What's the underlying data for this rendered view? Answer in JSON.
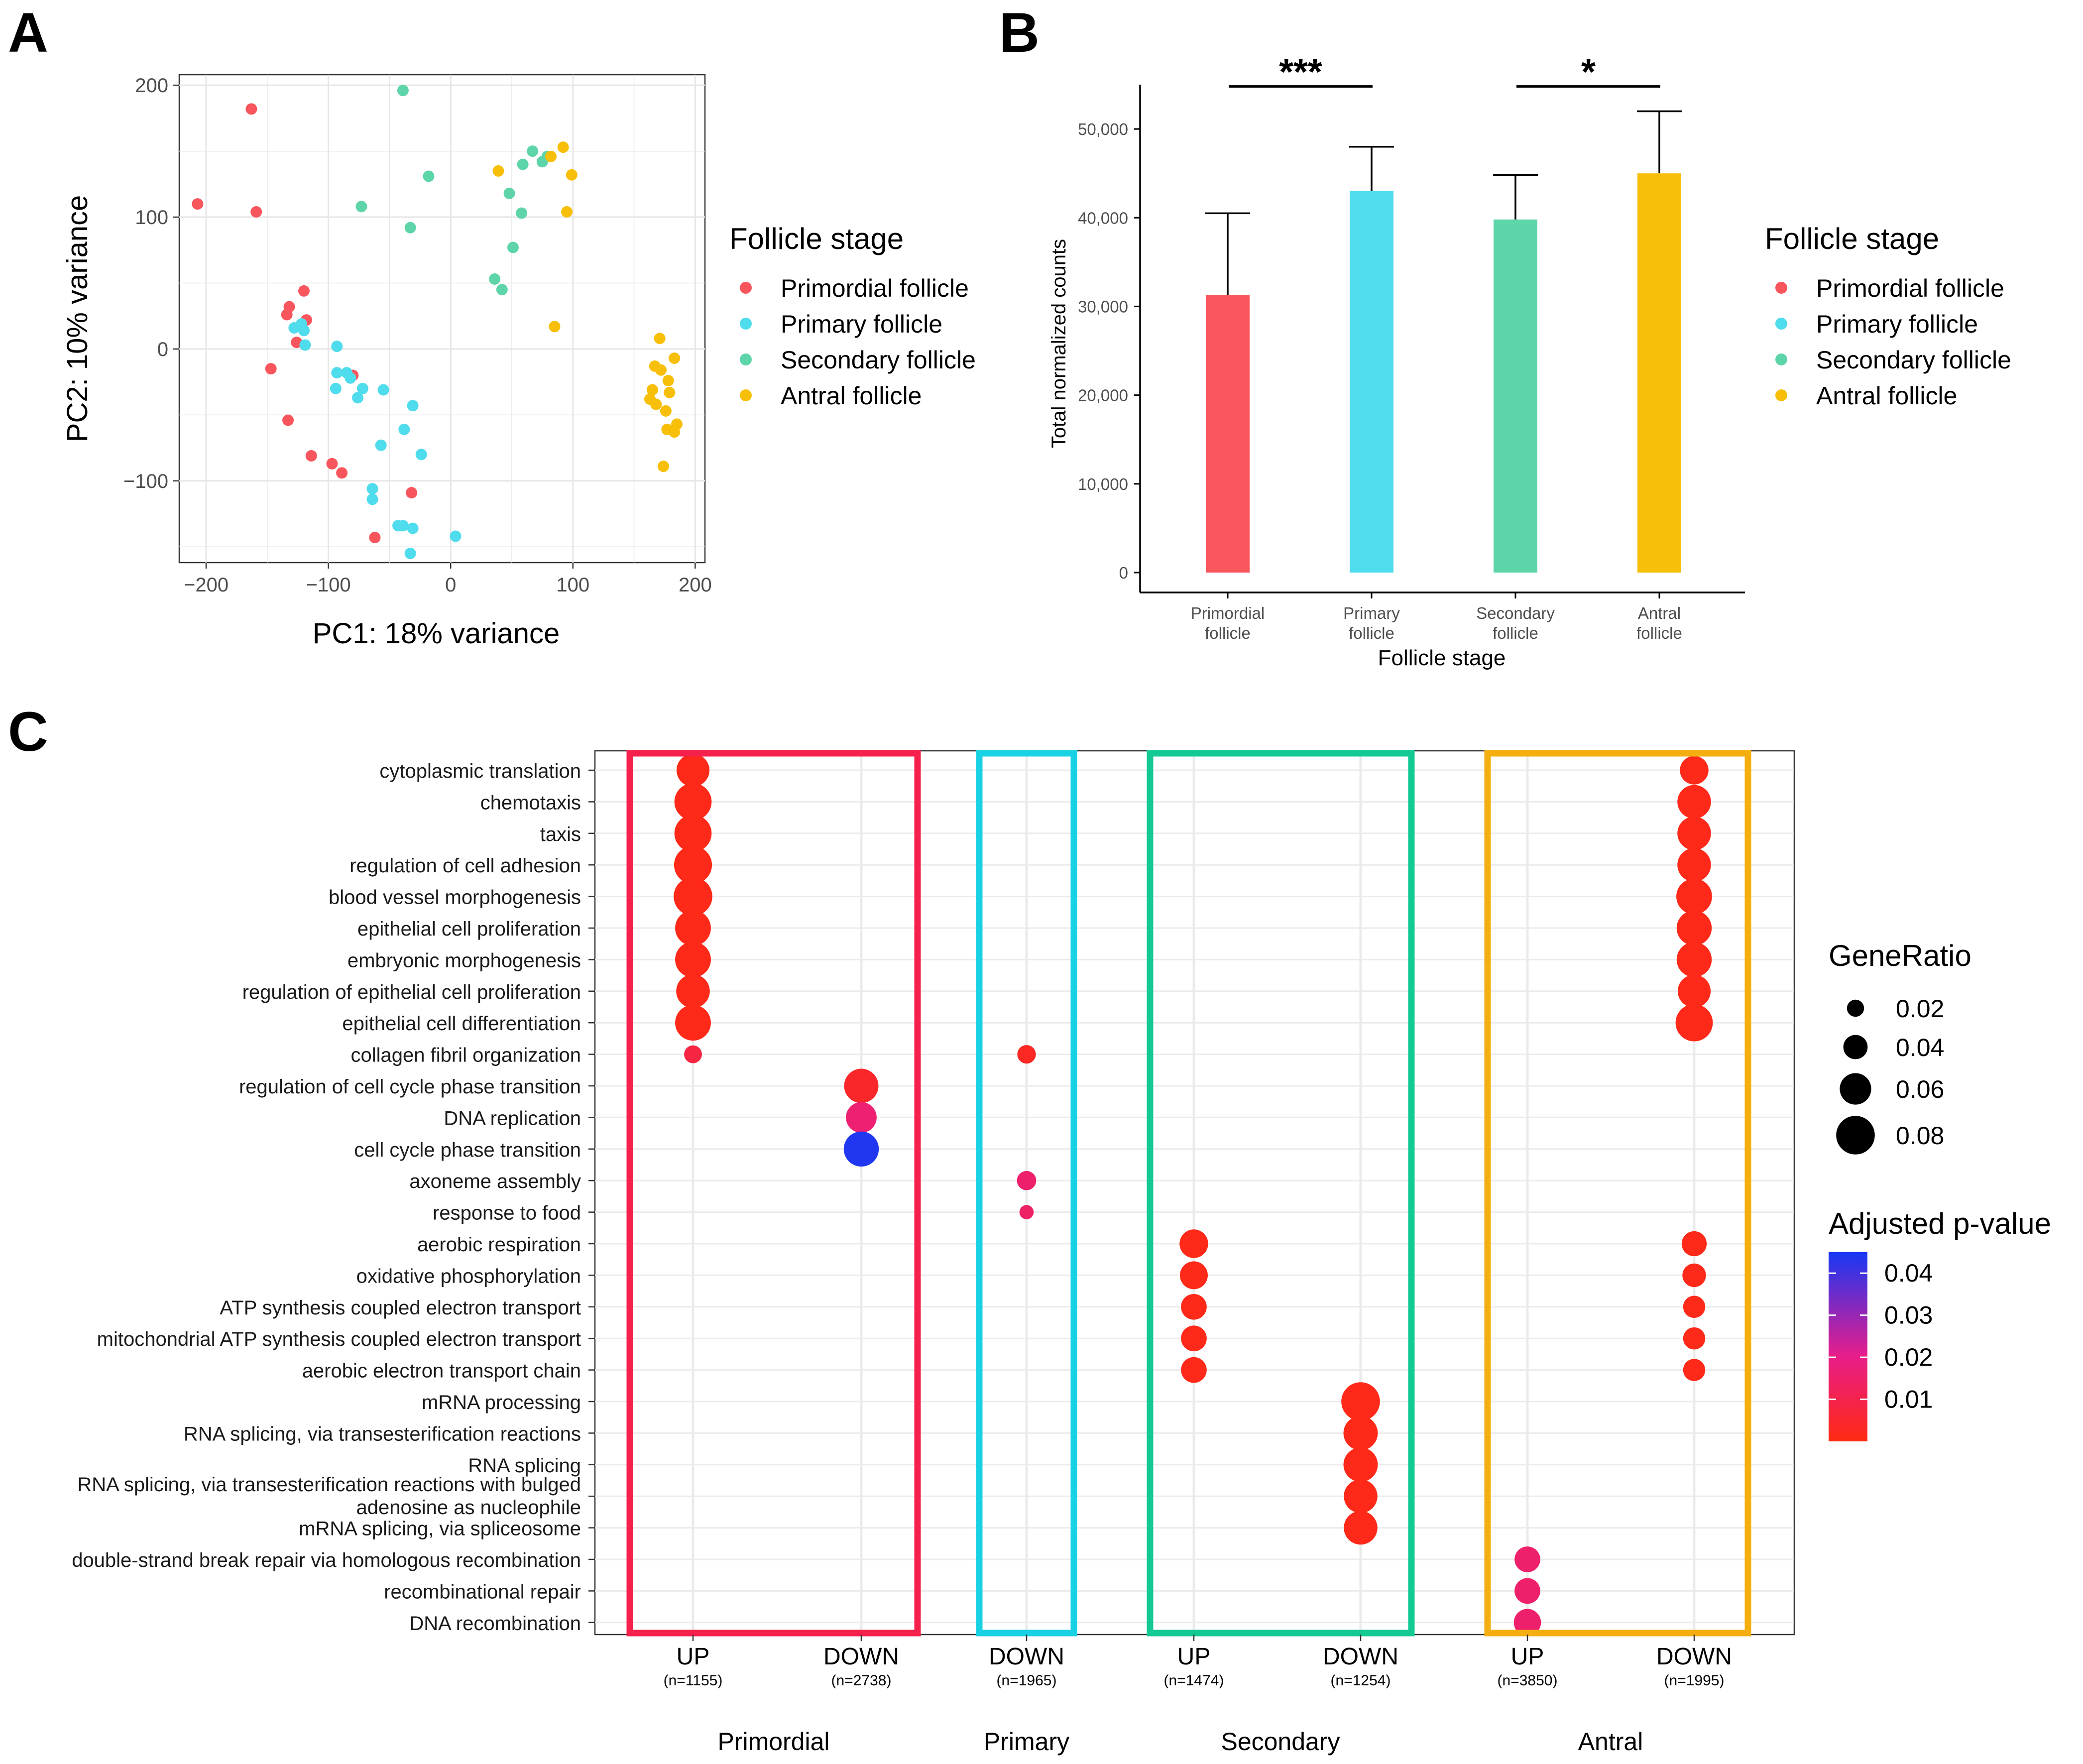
{
  "panels": {
    "A": "A",
    "B": "B",
    "C": "C"
  },
  "colors": {
    "Primordial follicle": "#f8555c",
    "Primary follicle": "#4fdcec",
    "Secondary follicle": "#5ed5a8",
    "Antral follicle": "#f7bf08",
    "box_primordial": "#f5204b",
    "box_primary": "#18d2e4",
    "box_secondary": "#13c994",
    "box_antral": "#f4ae0f"
  },
  "chart_data": [
    {
      "type": "scatter",
      "panel": "A",
      "xlabel": "PC1: 18% variance",
      "ylabel": "PC2: 10% variance",
      "xlim": [
        -222,
        208
      ],
      "ylim": [
        -162,
        208
      ],
      "xticks": [
        -200,
        -100,
        0,
        100,
        200
      ],
      "xtick_labels": [
        "−200",
        "−100",
        "0",
        "100",
        "200"
      ],
      "yticks": [
        -100,
        0,
        100,
        200
      ],
      "ytick_labels": [
        "−100",
        "0",
        "100",
        "200"
      ],
      "grid": true,
      "legend_title": "Follicle stage",
      "legend_position": "right",
      "series": [
        {
          "name": "Primordial follicle",
          "points": [
            [
              -163,
              182
            ],
            [
              -207,
              110
            ],
            [
              -159,
              104
            ],
            [
              -120,
              44
            ],
            [
              -132,
              32
            ],
            [
              -134,
              26
            ],
            [
              -118,
              22
            ],
            [
              -126,
              5
            ],
            [
              -147,
              -15
            ],
            [
              -80,
              -20
            ],
            [
              -133,
              -54
            ],
            [
              -114,
              -81
            ],
            [
              -97,
              -87
            ],
            [
              -89,
              -94
            ],
            [
              -32,
              -109
            ],
            [
              -62,
              -143
            ]
          ]
        },
        {
          "name": "Primary follicle",
          "points": [
            [
              -128,
              16
            ],
            [
              -122,
              19
            ],
            [
              -120,
              14
            ],
            [
              -119,
              3
            ],
            [
              -93,
              2
            ],
            [
              -93,
              -18
            ],
            [
              -85,
              -18
            ],
            [
              -82,
              -22
            ],
            [
              -94,
              -30
            ],
            [
              -72,
              -30
            ],
            [
              -76,
              -37
            ],
            [
              -55,
              -31
            ],
            [
              -38,
              -61
            ],
            [
              -31,
              -43
            ],
            [
              -57,
              -73
            ],
            [
              -24,
              -80
            ],
            [
              -64,
              -106
            ],
            [
              -64,
              -114
            ],
            [
              -39,
              -134
            ],
            [
              -31,
              -136
            ],
            [
              -43,
              -134
            ],
            [
              4,
              -142
            ],
            [
              -33,
              -155
            ]
          ]
        },
        {
          "name": "Secondary follicle",
          "points": [
            [
              -39,
              196
            ],
            [
              -18,
              131
            ],
            [
              -73,
              108
            ],
            [
              -33,
              92
            ],
            [
              67,
              150
            ],
            [
              79,
              146
            ],
            [
              59,
              140
            ],
            [
              75,
              142
            ],
            [
              48,
              118
            ],
            [
              58,
              103
            ],
            [
              51,
              77
            ],
            [
              36,
              53
            ],
            [
              42,
              45
            ]
          ]
        },
        {
          "name": "Antral follicle",
          "points": [
            [
              39,
              135
            ],
            [
              82,
              146
            ],
            [
              92,
              153
            ],
            [
              99,
              132
            ],
            [
              95,
              104
            ],
            [
              85,
              17
            ],
            [
              171,
              8
            ],
            [
              183,
              -7
            ],
            [
              167,
              -13
            ],
            [
              172,
              -16
            ],
            [
              178,
              -24
            ],
            [
              165,
              -31
            ],
            [
              179,
              -33
            ],
            [
              163,
              -38
            ],
            [
              168,
              -42
            ],
            [
              176,
              -47
            ],
            [
              185,
              -57
            ],
            [
              177,
              -61
            ],
            [
              183,
              -63
            ],
            [
              174,
              -89
            ]
          ]
        }
      ]
    },
    {
      "type": "bar",
      "panel": "B",
      "xlabel": "Follicle stage",
      "ylabel": "Total normalized counts",
      "ylim": [
        0,
        55000
      ],
      "yticks": [
        0,
        10000,
        20000,
        30000,
        40000,
        50000
      ],
      "ytick_labels": [
        "0",
        "10,000",
        "20,000",
        "30,000",
        "40,000",
        "50,000"
      ],
      "categories": [
        "Primordial follicle",
        "Primary follicle",
        "Secondary follicle",
        "Antral follicle"
      ],
      "category_labels": [
        [
          "Primordial",
          "follicle"
        ],
        [
          "Primary",
          "follicle"
        ],
        [
          "Secondary",
          "follicle"
        ],
        [
          "Antral",
          "follicle"
        ]
      ],
      "values": [
        31300,
        43000,
        39800,
        45000
      ],
      "error_upper": [
        40500,
        48000,
        44800,
        52000
      ],
      "significance": [
        {
          "from": 0,
          "to": 1,
          "label": "***",
          "y": 54800
        },
        {
          "from": 2,
          "to": 3,
          "label": "*",
          "y": 54800
        }
      ],
      "legend_title": "Follicle stage",
      "legend_position": "right"
    },
    {
      "type": "dot",
      "panel": "C",
      "columns": [
        {
          "group": "Primordial",
          "label": "UP",
          "n": "(n=1155)"
        },
        {
          "group": "Primordial",
          "label": "DOWN",
          "n": "(n=2738)"
        },
        {
          "group": "Primary",
          "label": "DOWN",
          "n": "(n=1965)"
        },
        {
          "group": "Secondary",
          "label": "UP",
          "n": "(n=1474)"
        },
        {
          "group": "Secondary",
          "label": "DOWN",
          "n": "(n=1254)"
        },
        {
          "group": "Antral",
          "label": "UP",
          "n": "(n=3850)"
        },
        {
          "group": "Antral",
          "label": "DOWN",
          "n": "(n=1995)"
        }
      ],
      "groups": [
        "Primordial",
        "Primary",
        "Secondary",
        "Antral"
      ],
      "terms": [
        "cytoplasmic translation",
        "chemotaxis",
        "taxis",
        "regulation of cell adhesion",
        "blood vessel morphogenesis",
        "epithelial cell proliferation",
        "embryonic morphogenesis",
        "regulation of epithelial cell proliferation",
        "epithelial cell differentiation",
        "collagen fibril organization",
        "regulation of cell cycle phase transition",
        "DNA replication",
        "cell cycle phase transition",
        "axoneme assembly",
        "response to food",
        "aerobic respiration",
        "oxidative phosphorylation",
        "ATP synthesis coupled electron transport",
        "mitochondrial ATP synthesis coupled electron transport",
        "aerobic electron transport chain",
        "mRNA processing",
        "RNA splicing, via transesterification reactions",
        "RNA splicing",
        "RNA splicing, via transesterification reactions with bulged adenosine as nucleophile",
        "mRNA splicing, via spliceosome",
        "double-strand break repair via homologous recombination",
        "recombinational repair",
        "DNA recombination"
      ],
      "term_labels": [
        [
          "cytoplasmic translation"
        ],
        [
          "chemotaxis"
        ],
        [
          "taxis"
        ],
        [
          "regulation of cell adhesion"
        ],
        [
          "blood vessel morphogenesis"
        ],
        [
          "epithelial cell proliferation"
        ],
        [
          "embryonic morphogenesis"
        ],
        [
          "regulation of epithelial cell proliferation"
        ],
        [
          "epithelial cell differentiation"
        ],
        [
          "collagen fibril organization"
        ],
        [
          "regulation of cell cycle phase transition"
        ],
        [
          "DNA replication"
        ],
        [
          "cell cycle phase transition"
        ],
        [
          "axoneme assembly"
        ],
        [
          "response to food"
        ],
        [
          "aerobic respiration"
        ],
        [
          "oxidative phosphorylation"
        ],
        [
          "ATP synthesis coupled electron transport"
        ],
        [
          "mitochondrial ATP synthesis coupled electron transport"
        ],
        [
          "aerobic electron transport chain"
        ],
        [
          "mRNA processing"
        ],
        [
          "RNA splicing, via transesterification reactions"
        ],
        [
          "RNA splicing"
        ],
        [
          "RNA splicing, via transesterification reactions with bulged",
          "adenosine as nucleophile"
        ],
        [
          "mRNA splicing, via spliceosome"
        ],
        [
          "double-strand break repair via homologous recombination"
        ],
        [
          "recombinational repair"
        ],
        [
          "DNA recombination"
        ]
      ],
      "points": [
        {
          "col": 0,
          "term": 0,
          "gene_ratio": 0.064,
          "p_adj": 0.001
        },
        {
          "col": 0,
          "term": 1,
          "gene_ratio": 0.076,
          "p_adj": 0.001
        },
        {
          "col": 0,
          "term": 2,
          "gene_ratio": 0.076,
          "p_adj": 0.001
        },
        {
          "col": 0,
          "term": 3,
          "gene_ratio": 0.078,
          "p_adj": 0.001
        },
        {
          "col": 0,
          "term": 4,
          "gene_ratio": 0.08,
          "p_adj": 0.001
        },
        {
          "col": 0,
          "term": 5,
          "gene_ratio": 0.072,
          "p_adj": 0.001
        },
        {
          "col": 0,
          "term": 6,
          "gene_ratio": 0.072,
          "p_adj": 0.001
        },
        {
          "col": 0,
          "term": 7,
          "gene_ratio": 0.066,
          "p_adj": 0.001
        },
        {
          "col": 0,
          "term": 8,
          "gene_ratio": 0.072,
          "p_adj": 0.001
        },
        {
          "col": 0,
          "term": 9,
          "gene_ratio": 0.022,
          "p_adj": 0.008
        },
        {
          "col": 1,
          "term": 10,
          "gene_ratio": 0.068,
          "p_adj": 0.004
        },
        {
          "col": 1,
          "term": 11,
          "gene_ratio": 0.058,
          "p_adj": 0.016
        },
        {
          "col": 1,
          "term": 12,
          "gene_ratio": 0.07,
          "p_adj": 0.044
        },
        {
          "col": 2,
          "term": 9,
          "gene_ratio": 0.024,
          "p_adj": 0.003
        },
        {
          "col": 2,
          "term": 13,
          "gene_ratio": 0.026,
          "p_adj": 0.015
        },
        {
          "col": 2,
          "term": 14,
          "gene_ratio": 0.012,
          "p_adj": 0.014
        },
        {
          "col": 3,
          "term": 15,
          "gene_ratio": 0.052,
          "p_adj": 0.001
        },
        {
          "col": 3,
          "term": 16,
          "gene_ratio": 0.05,
          "p_adj": 0.001
        },
        {
          "col": 3,
          "term": 17,
          "gene_ratio": 0.044,
          "p_adj": 0.001
        },
        {
          "col": 3,
          "term": 18,
          "gene_ratio": 0.044,
          "p_adj": 0.001
        },
        {
          "col": 3,
          "term": 19,
          "gene_ratio": 0.044,
          "p_adj": 0.001
        },
        {
          "col": 4,
          "term": 20,
          "gene_ratio": 0.08,
          "p_adj": 0.001
        },
        {
          "col": 4,
          "term": 21,
          "gene_ratio": 0.068,
          "p_adj": 0.001
        },
        {
          "col": 4,
          "term": 22,
          "gene_ratio": 0.068,
          "p_adj": 0.001
        },
        {
          "col": 4,
          "term": 23,
          "gene_ratio": 0.066,
          "p_adj": 0.001
        },
        {
          "col": 4,
          "term": 24,
          "gene_ratio": 0.066,
          "p_adj": 0.001
        },
        {
          "col": 5,
          "term": 25,
          "gene_ratio": 0.044,
          "p_adj": 0.015
        },
        {
          "col": 5,
          "term": 26,
          "gene_ratio": 0.044,
          "p_adj": 0.015
        },
        {
          "col": 5,
          "term": 27,
          "gene_ratio": 0.048,
          "p_adj": 0.015
        },
        {
          "col": 6,
          "term": 0,
          "gene_ratio": 0.052,
          "p_adj": 0.001
        },
        {
          "col": 6,
          "term": 1,
          "gene_ratio": 0.066,
          "p_adj": 0.001
        },
        {
          "col": 6,
          "term": 2,
          "gene_ratio": 0.066,
          "p_adj": 0.001
        },
        {
          "col": 6,
          "term": 3,
          "gene_ratio": 0.066,
          "p_adj": 0.001
        },
        {
          "col": 6,
          "term": 4,
          "gene_ratio": 0.072,
          "p_adj": 0.001
        },
        {
          "col": 6,
          "term": 5,
          "gene_ratio": 0.07,
          "p_adj": 0.001
        },
        {
          "col": 6,
          "term": 6,
          "gene_ratio": 0.07,
          "p_adj": 0.001
        },
        {
          "col": 6,
          "term": 7,
          "gene_ratio": 0.064,
          "p_adj": 0.001
        },
        {
          "col": 6,
          "term": 8,
          "gene_ratio": 0.076,
          "p_adj": 0.001
        },
        {
          "col": 6,
          "term": 15,
          "gene_ratio": 0.042,
          "p_adj": 0.001
        },
        {
          "col": 6,
          "term": 16,
          "gene_ratio": 0.038,
          "p_adj": 0.001
        },
        {
          "col": 6,
          "term": 17,
          "gene_ratio": 0.034,
          "p_adj": 0.001
        },
        {
          "col": 6,
          "term": 18,
          "gene_ratio": 0.034,
          "p_adj": 0.001
        },
        {
          "col": 6,
          "term": 19,
          "gene_ratio": 0.034,
          "p_adj": 0.001
        }
      ],
      "size_legend": {
        "title": "GeneRatio",
        "values": [
          0.02,
          0.04,
          0.06,
          0.08
        ],
        "labels": [
          "0.02",
          "0.04",
          "0.06",
          "0.08"
        ]
      },
      "color_legend": {
        "title": "Adjusted p-value",
        "range": [
          0.0,
          0.045
        ],
        "colors": [
          "#ff2a12",
          "#e81d8a",
          "#1837f5"
        ],
        "ticks": [
          0.01,
          0.02,
          0.03,
          0.04
        ],
        "labels": [
          "0.01",
          "0.02",
          "0.03",
          "0.04"
        ]
      }
    }
  ]
}
